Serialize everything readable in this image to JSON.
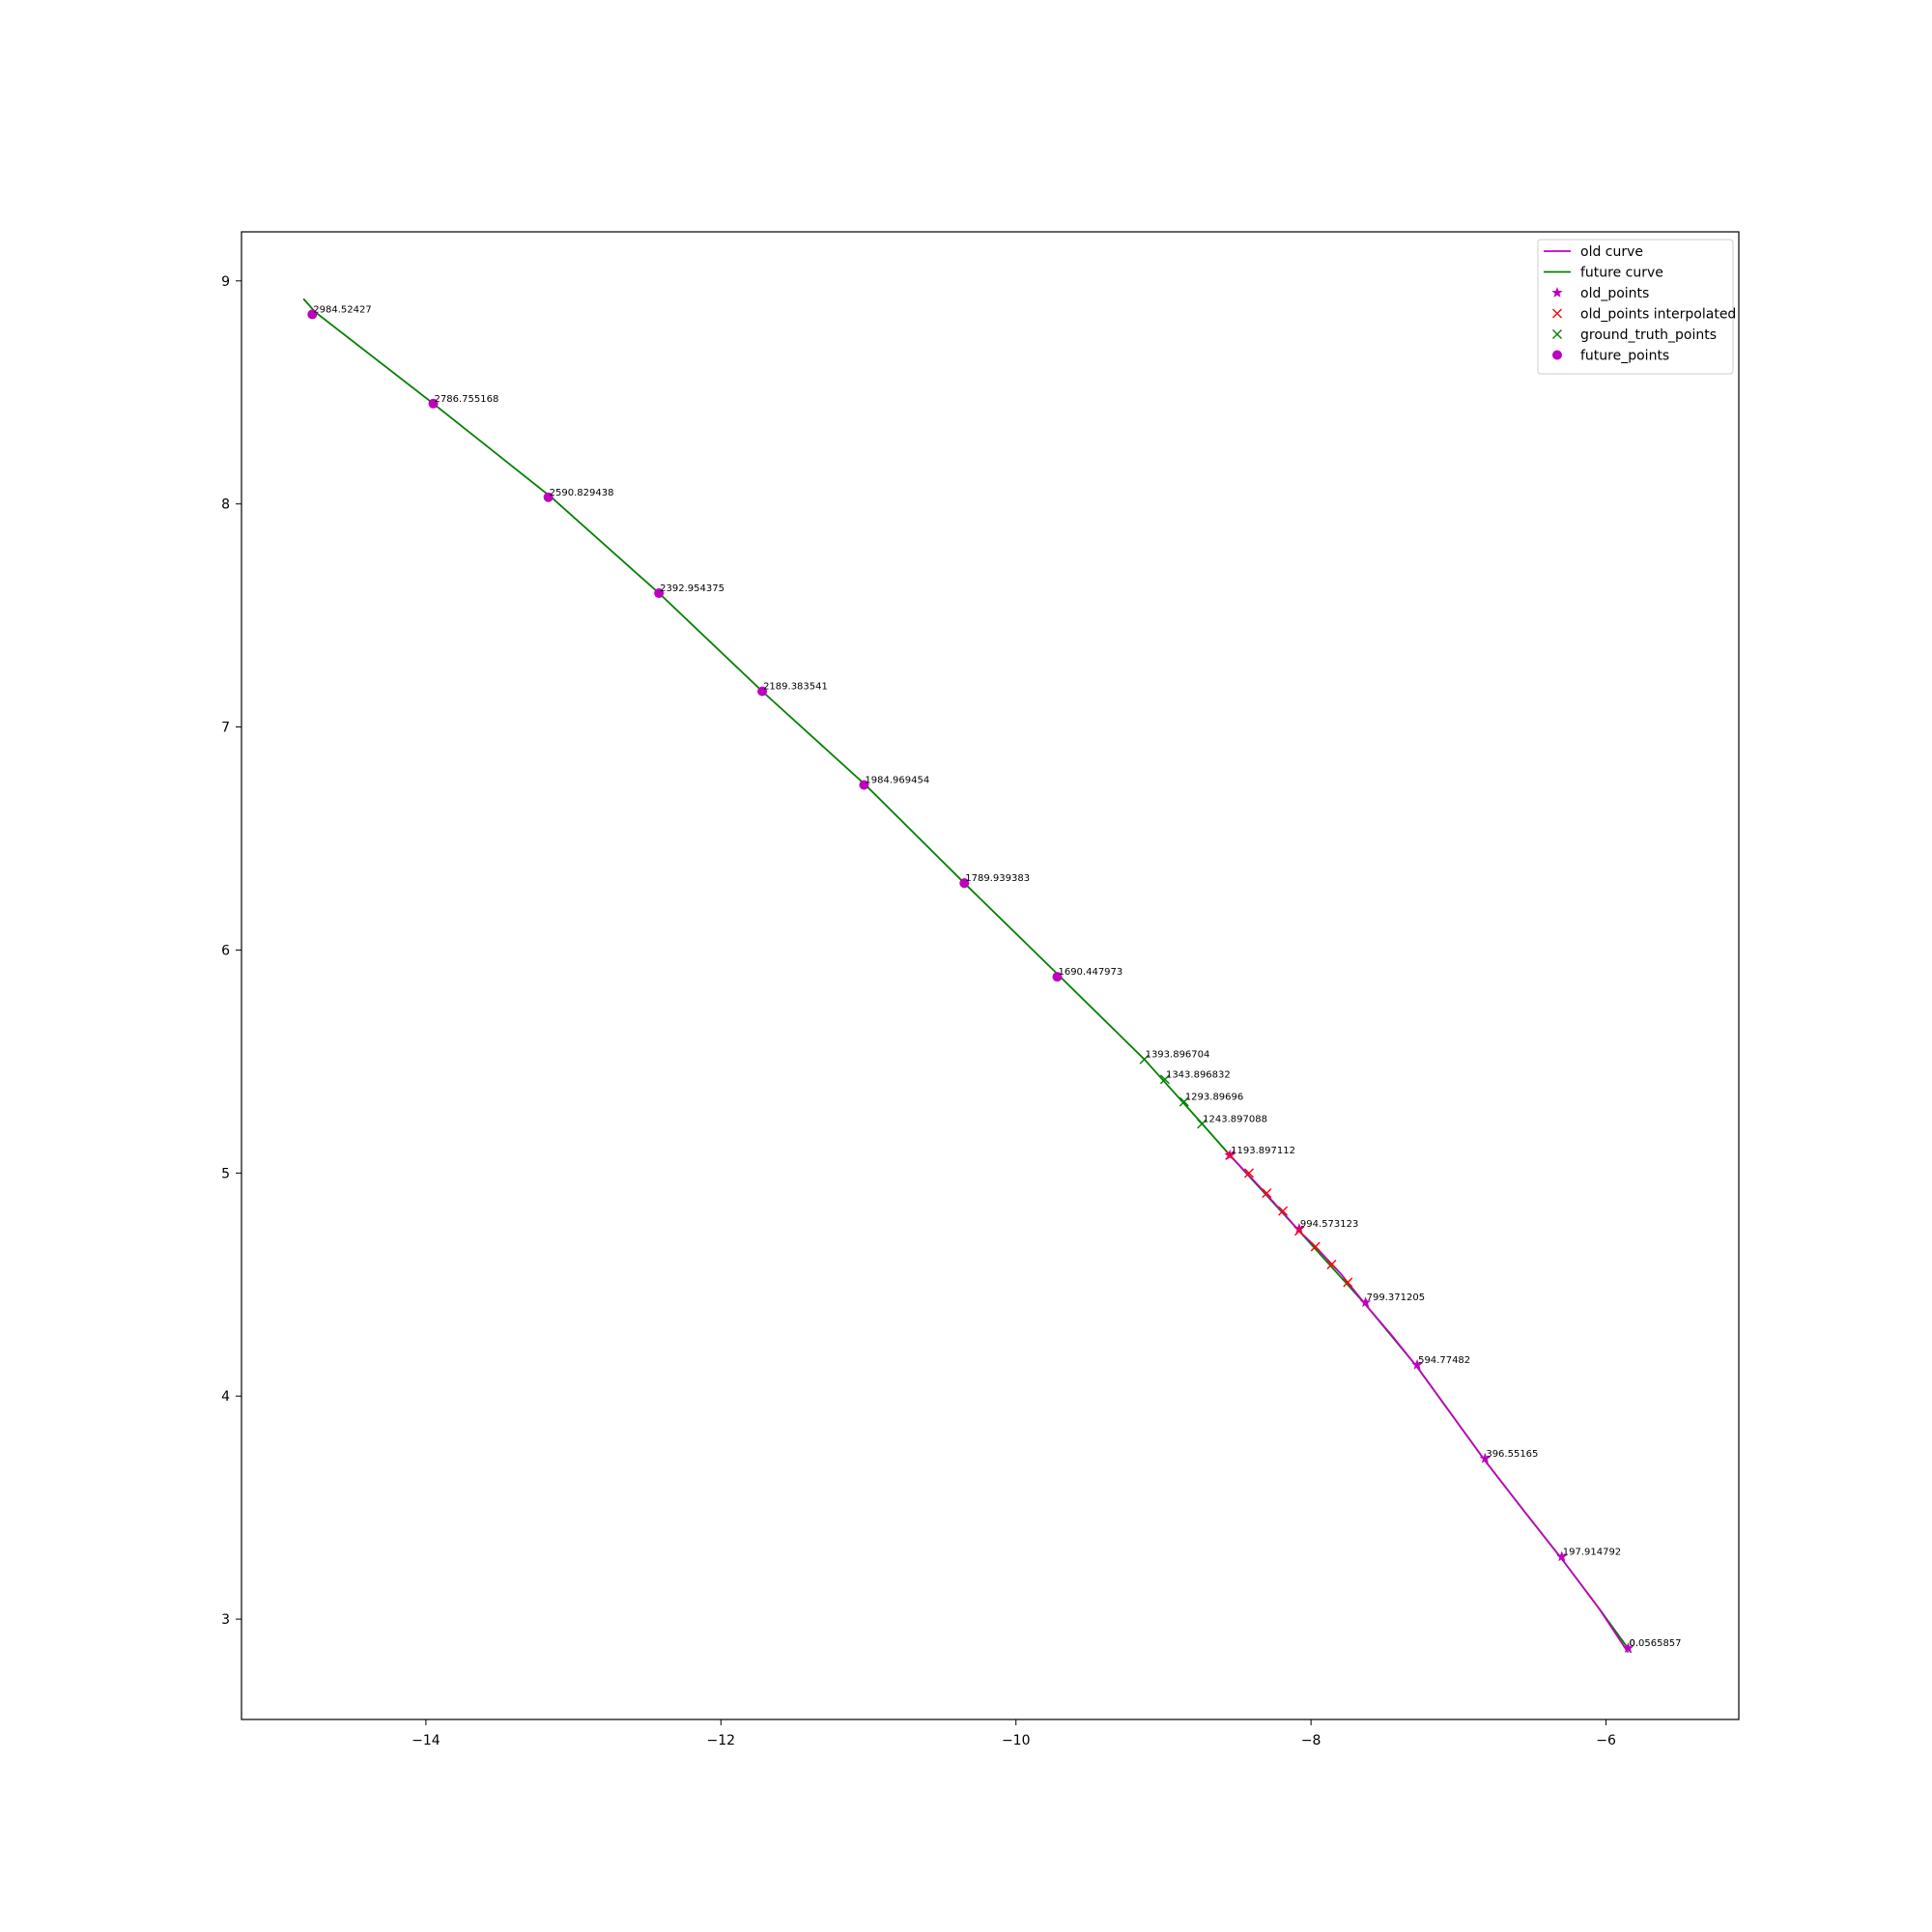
{
  "chart_data": {
    "type": "scatter",
    "title": "",
    "xlabel": "",
    "ylabel": "",
    "xlim": [
      -15.25,
      -5.1
    ],
    "ylim": [
      2.55,
      9.22
    ],
    "xticks": [
      -14,
      -12,
      -10,
      -8,
      -6
    ],
    "yticks": [
      3,
      4,
      5,
      6,
      7,
      8,
      9
    ],
    "xtick_labels": [
      "−14",
      "−12",
      "−10",
      "−8",
      "−6"
    ],
    "ytick_labels": [
      "3",
      "4",
      "5",
      "6",
      "7",
      "8",
      "9"
    ],
    "grid": false,
    "legend_position": "top-right",
    "colors": {
      "old_curve": "#bf00bf",
      "future_curve": "#008000",
      "old_points": "#bf00bf",
      "old_points_interpolated": "#ff0000",
      "ground_truth_points": "#008000",
      "future_points": "#bf00bf"
    },
    "legend": [
      {
        "key": "old_curve",
        "label": "old curve",
        "marker": "line"
      },
      {
        "key": "future_curve",
        "label": "future curve",
        "marker": "line"
      },
      {
        "key": "old_points",
        "label": "old_points",
        "marker": "star"
      },
      {
        "key": "old_points_interpolated",
        "label": "old_points interpolated",
        "marker": "x"
      },
      {
        "key": "ground_truth_points",
        "label": "ground_truth_points",
        "marker": "x"
      },
      {
        "key": "future_points",
        "label": "future_points",
        "marker": "circle"
      }
    ],
    "series": [
      {
        "key": "old_curve",
        "kind": "line",
        "x": [
          -5.85,
          -6.05,
          -6.3,
          -6.55,
          -6.82,
          -7.05,
          -7.28,
          -7.45,
          -7.63,
          -7.8,
          -7.97,
          -8.08,
          -8.2,
          -8.35,
          -8.55
        ],
        "y": [
          2.85,
          3.05,
          3.27,
          3.48,
          3.71,
          3.92,
          4.13,
          4.27,
          4.41,
          4.55,
          4.67,
          4.74,
          4.83,
          4.94,
          5.08
        ]
      },
      {
        "key": "future_curve",
        "kind": "line",
        "x": [
          -5.83,
          -6.05,
          -6.3,
          -6.55,
          -6.82,
          -7.05,
          -7.28,
          -7.63,
          -8.08,
          -8.55,
          -8.75,
          -9.13,
          -9.7,
          -10.35,
          -11.02,
          -11.72,
          -12.42,
          -13.15,
          -13.95,
          -14.75,
          -14.83
        ],
        "y": [
          2.85,
          3.05,
          3.27,
          3.48,
          3.71,
          3.92,
          4.13,
          4.41,
          4.74,
          5.08,
          5.23,
          5.51,
          5.88,
          6.3,
          6.74,
          7.16,
          7.6,
          8.03,
          8.45,
          8.86,
          8.92
        ]
      },
      {
        "key": "old_points",
        "kind": "star",
        "x": [
          -5.85,
          -6.3,
          -6.82,
          -7.28,
          -7.63,
          -8.08,
          -8.55
        ],
        "y": [
          2.87,
          3.28,
          3.72,
          4.14,
          4.42,
          4.75,
          5.08
        ]
      },
      {
        "key": "old_points_interpolated",
        "kind": "x",
        "x": [
          -8.55,
          -8.42,
          -8.3,
          -8.19,
          -8.08,
          -7.97,
          -7.86,
          -7.75
        ],
        "y": [
          5.08,
          5.0,
          4.91,
          4.83,
          4.74,
          4.67,
          4.59,
          4.51
        ]
      },
      {
        "key": "ground_truth_points",
        "kind": "x",
        "x": [
          -9.13,
          -8.99,
          -8.86,
          -8.74
        ],
        "y": [
          5.51,
          5.42,
          5.32,
          5.22
        ]
      },
      {
        "key": "future_points",
        "kind": "circle",
        "x": [
          -14.77,
          -13.95,
          -13.17,
          -12.42,
          -11.72,
          -11.03,
          -10.35,
          -9.72
        ],
        "y": [
          8.85,
          8.45,
          8.03,
          7.6,
          7.16,
          6.74,
          6.3,
          5.88
        ]
      }
    ],
    "annotations": [
      {
        "x": -14.77,
        "y": 8.85,
        "text": "2984.52427"
      },
      {
        "x": -13.95,
        "y": 8.45,
        "text": "2786.755168"
      },
      {
        "x": -13.17,
        "y": 8.03,
        "text": "2590.829438"
      },
      {
        "x": -12.42,
        "y": 7.6,
        "text": "2392.954375"
      },
      {
        "x": -11.72,
        "y": 7.16,
        "text": "2189.383541"
      },
      {
        "x": -11.03,
        "y": 6.74,
        "text": "1984.969454"
      },
      {
        "x": -10.35,
        "y": 6.3,
        "text": "1789.939383"
      },
      {
        "x": -9.72,
        "y": 5.88,
        "text": "1690.447973"
      },
      {
        "x": -9.13,
        "y": 5.51,
        "text": "1393.896704"
      },
      {
        "x": -8.99,
        "y": 5.42,
        "text": "1343.896832"
      },
      {
        "x": -8.86,
        "y": 5.32,
        "text": "1293.89696"
      },
      {
        "x": -8.74,
        "y": 5.22,
        "text": "1243.897088"
      },
      {
        "x": -8.55,
        "y": 5.08,
        "text": "1193.897112"
      },
      {
        "x": -8.08,
        "y": 4.75,
        "text": "994.573123"
      },
      {
        "x": -7.63,
        "y": 4.42,
        "text": "799.371205"
      },
      {
        "x": -7.28,
        "y": 4.14,
        "text": "594.77482"
      },
      {
        "x": -6.82,
        "y": 3.72,
        "text": "396.55165"
      },
      {
        "x": -6.3,
        "y": 3.28,
        "text": "197.914792"
      },
      {
        "x": -5.85,
        "y": 2.87,
        "text": "0.0565857"
      },
      {
        "x": -5.85,
        "y": 2.87,
        "text": "0."
      }
    ]
  }
}
